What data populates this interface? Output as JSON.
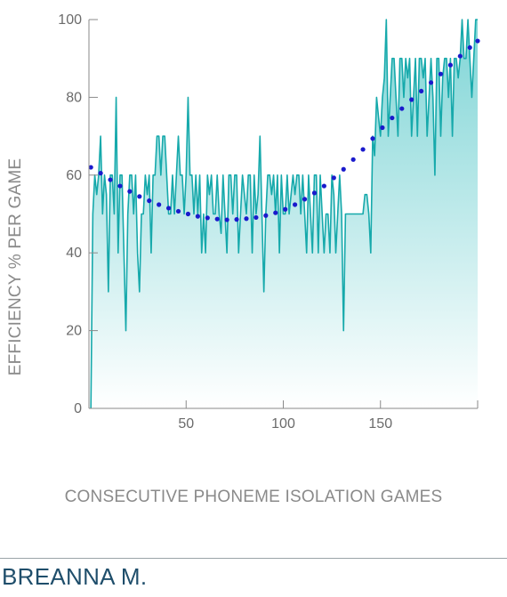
{
  "student_name": "BREANNA M.",
  "colors": {
    "line": "#16a9ab",
    "area_top": "#7fd5d6",
    "area_bottom": "#ffffff",
    "trend": "#1a1acc",
    "axis": "#8a8a8a",
    "name": "#1f4e6b"
  },
  "chart_data": {
    "type": "area",
    "xlabel": "CONSECUTIVE PHONEME ISOLATION GAMES",
    "ylabel": "EFFICIENCY % PER GAME",
    "xlim": [
      0,
      200
    ],
    "ylim": [
      0,
      100
    ],
    "x_ticks": [
      50,
      100,
      150
    ],
    "y_ticks": [
      0,
      20,
      40,
      60,
      80,
      100
    ],
    "grid": false,
    "series": [
      {
        "style": "line-with-gradient-fill",
        "x": [
          1,
          2,
          3,
          4,
          5,
          6,
          7,
          8,
          9,
          10,
          11,
          12,
          13,
          14,
          15,
          16,
          17,
          18,
          19,
          20,
          21,
          22,
          23,
          24,
          25,
          26,
          27,
          28,
          29,
          30,
          31,
          32,
          33,
          34,
          35,
          36,
          37,
          38,
          39,
          40,
          41,
          42,
          43,
          44,
          45,
          46,
          47,
          48,
          49,
          50,
          51,
          52,
          53,
          54,
          55,
          56,
          57,
          58,
          59,
          60,
          61,
          62,
          63,
          64,
          65,
          66,
          67,
          68,
          69,
          70,
          71,
          72,
          73,
          74,
          75,
          76,
          77,
          78,
          79,
          80,
          81,
          82,
          83,
          84,
          85,
          86,
          87,
          88,
          89,
          90,
          91,
          92,
          93,
          94,
          95,
          96,
          97,
          98,
          99,
          100,
          101,
          102,
          103,
          104,
          105,
          106,
          107,
          108,
          109,
          110,
          111,
          112,
          113,
          114,
          115,
          116,
          117,
          118,
          119,
          120,
          121,
          122,
          123,
          124,
          125,
          126,
          127,
          128,
          129,
          130,
          131,
          132,
          133,
          134,
          135,
          136,
          137,
          138,
          139,
          140,
          141,
          142,
          143,
          144,
          145,
          146,
          147,
          148,
          149,
          150,
          151,
          152,
          153,
          154,
          155,
          156,
          157,
          158,
          159,
          160,
          161,
          162,
          163,
          164,
          165,
          166,
          167,
          168,
          169,
          170,
          171,
          172,
          173,
          174,
          175,
          176,
          177,
          178,
          179,
          180,
          181,
          182,
          183,
          184,
          185,
          186,
          187,
          188,
          189,
          190,
          191,
          192,
          193,
          194,
          195,
          196,
          197,
          198,
          199,
          200
        ],
        "values": [
          0,
          50,
          60,
          55,
          60,
          70,
          50,
          60,
          55,
          30,
          60,
          60,
          50,
          80,
          40,
          60,
          60,
          40,
          20,
          50,
          60,
          60,
          50,
          60,
          40,
          30,
          50,
          50,
          60,
          55,
          60,
          40,
          60,
          60,
          70,
          70,
          60,
          70,
          70,
          60,
          50,
          50,
          60,
          50,
          60,
          70,
          60,
          60,
          50,
          60,
          80,
          60,
          60,
          50,
          60,
          50,
          60,
          40,
          50,
          40,
          60,
          55,
          60,
          50,
          50,
          60,
          50,
          45,
          60,
          50,
          40,
          60,
          60,
          50,
          60,
          60,
          40,
          50,
          60,
          55,
          50,
          60,
          60,
          40,
          60,
          50,
          55,
          70,
          50,
          30,
          50,
          60,
          60,
          55,
          60,
          50,
          60,
          40,
          60,
          50,
          50,
          60,
          50,
          55,
          60,
          55,
          60,
          60,
          50,
          60,
          50,
          40,
          60,
          50,
          40,
          60,
          60,
          40,
          60,
          50,
          40,
          50,
          50,
          40,
          60,
          55,
          40,
          50,
          60,
          50,
          20,
          50,
          50,
          50,
          50,
          50,
          50,
          50,
          50,
          50,
          50,
          55,
          55,
          50,
          40,
          70,
          65,
          80,
          75,
          70,
          80,
          85,
          100,
          70,
          80,
          90,
          90,
          80,
          70,
          90,
          90,
          80,
          90,
          85,
          90,
          70,
          80,
          90,
          70,
          90,
          90,
          85,
          90,
          70,
          80,
          90,
          80,
          60,
          90,
          90,
          70,
          85,
          90,
          90,
          80,
          90,
          70,
          90,
          90,
          85,
          90,
          100,
          90,
          90,
          100,
          90,
          80,
          90,
          100,
          100
        ]
      },
      {
        "style": "dotted-trendline",
        "x": [
          1,
          6,
          11,
          16,
          21,
          26,
          31,
          36,
          41,
          46,
          51,
          56,
          61,
          66,
          71,
          76,
          81,
          86,
          91,
          96,
          101,
          106,
          111,
          116,
          121,
          126,
          131,
          136,
          141,
          146,
          151,
          156,
          161,
          166,
          171,
          176,
          181,
          186,
          191,
          196,
          200
        ],
        "values": [
          62.0,
          60.5,
          58.8,
          57.2,
          55.8,
          54.5,
          53.4,
          52.4,
          51.5,
          50.7,
          50.0,
          49.4,
          49.0,
          48.7,
          48.5,
          48.6,
          48.8,
          49.1,
          49.6,
          50.3,
          51.2,
          52.4,
          53.8,
          55.4,
          57.2,
          59.3,
          61.5,
          64.0,
          66.6,
          69.4,
          72.2,
          74.7,
          77.1,
          79.4,
          81.6,
          83.8,
          86.0,
          88.3,
          90.6,
          92.8,
          94.5
        ]
      }
    ]
  }
}
